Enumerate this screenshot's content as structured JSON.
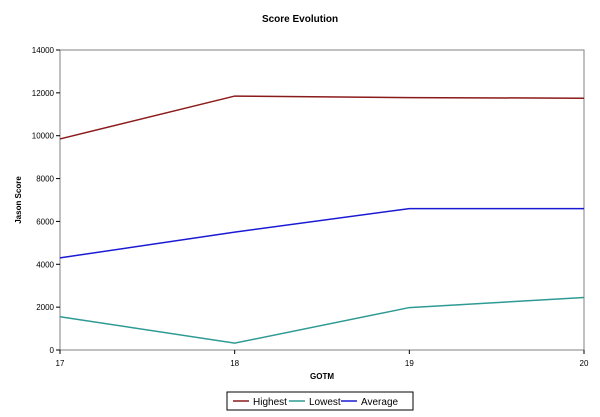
{
  "chart_data": {
    "type": "line",
    "title": "Score Evolution",
    "xlabel": "GOTM",
    "ylabel": "Jason Score",
    "x": [
      17,
      18,
      19,
      20
    ],
    "x_tick_labels": [
      "17",
      "18",
      "19",
      "20"
    ],
    "ylim": [
      0,
      14000
    ],
    "y_ticks": [
      0,
      2000,
      4000,
      6000,
      8000,
      10000,
      12000,
      14000
    ],
    "y_tick_labels": [
      "0",
      "2000",
      "4000",
      "6000",
      "8000",
      "10000",
      "12000",
      "14000"
    ],
    "grid": false,
    "legend_position": "bottom",
    "series": [
      {
        "name": "Highest",
        "color": "#8b1a1a",
        "values": [
          9850,
          11850,
          11780,
          11750
        ]
      },
      {
        "name": "Lowest",
        "color": "#2e9a94",
        "values": [
          1550,
          320,
          1980,
          2450
        ]
      },
      {
        "name": "Average",
        "color": "#1a1ad4",
        "values": [
          4300,
          5500,
          6600,
          6600
        ]
      }
    ]
  }
}
